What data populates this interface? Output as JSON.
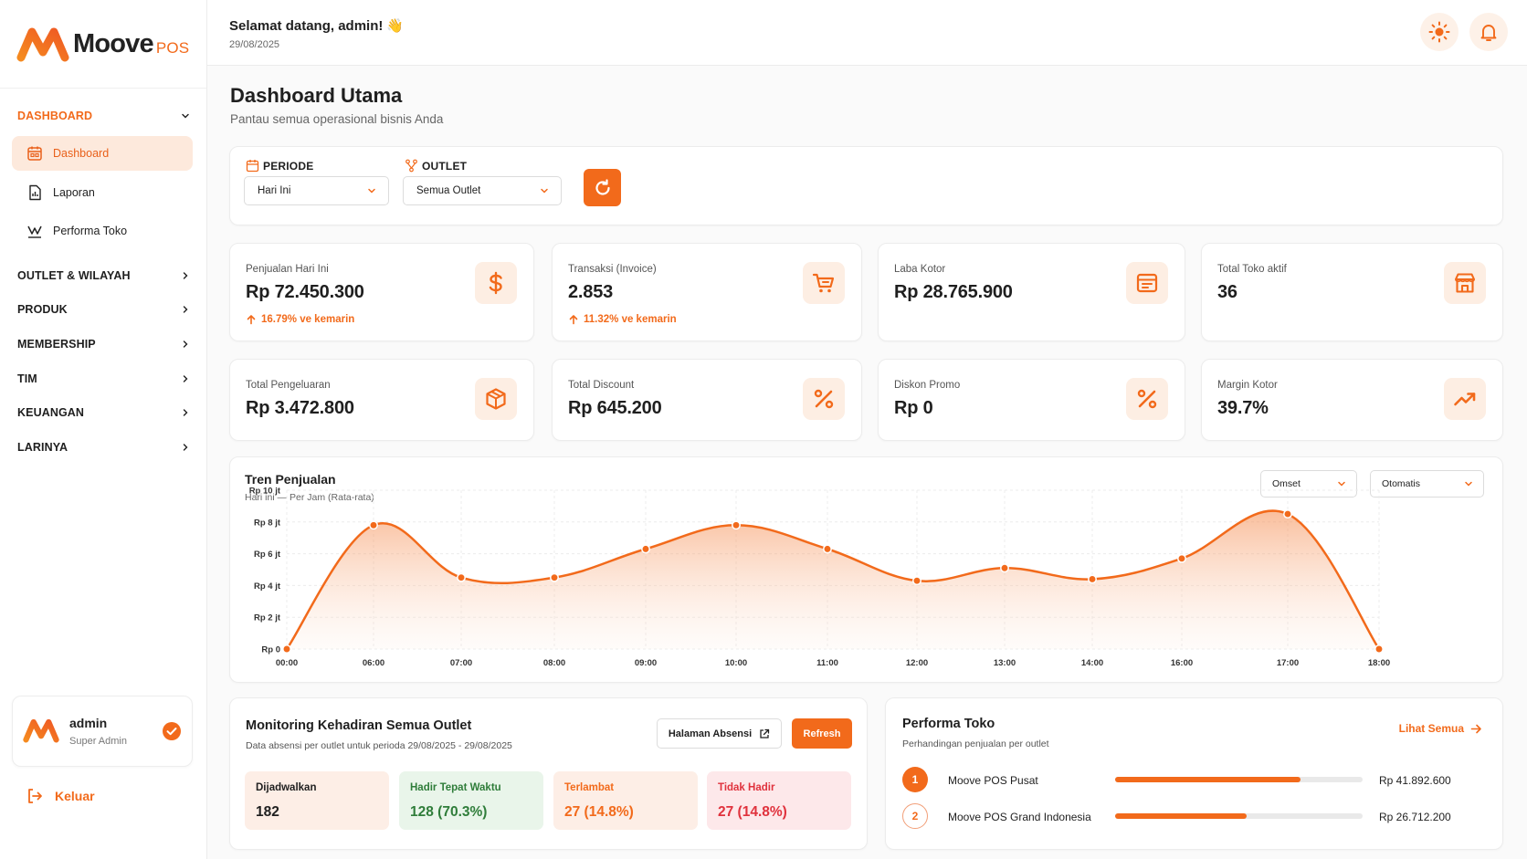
{
  "colors": {
    "accent": "#f26a1b",
    "accent_soft": "#fde9dc",
    "green": "#2f7d3a",
    "red": "#e0323d"
  },
  "brand": {
    "name": "Moove",
    "suffix": "POS"
  },
  "header": {
    "welcome": "Selamat datang, admin!",
    "wave": "👋",
    "date": "29/08/2025",
    "icons": [
      "sun-icon",
      "bell-icon"
    ]
  },
  "sidebar": {
    "section_dashboard": "DASHBOARD",
    "items": [
      {
        "label": "Dashboard",
        "icon": "calendar-icon",
        "active": true
      },
      {
        "label": "Laporan",
        "icon": "report-icon",
        "active": false
      },
      {
        "label": "Performa Toko",
        "icon": "performance-icon",
        "active": false
      }
    ],
    "sections": [
      "OUTLET & WILAYAH",
      "PRODUK",
      "MEMBERSHIP",
      "TIM",
      "KEUANGAN",
      "LARINYA"
    ],
    "user": {
      "name": "admin",
      "role": "Super Admin"
    },
    "logout": "Keluar"
  },
  "page": {
    "title": "Dashboard Utama",
    "subtitle": "Pantau semua operasional bisnis Anda"
  },
  "filters": {
    "periode_label": "PERIODE",
    "periode_value": "Hari Ini",
    "outlet_label": "OUTLET",
    "outlet_value": "Semua Outlet"
  },
  "stats": [
    {
      "label": "Penjualan Hari Ini",
      "value": "Rp 72.450.300",
      "trend": "16.79% ve kemarin",
      "icon": "dollar-icon"
    },
    {
      "label": "Transaksi (Invoice)",
      "value": "2.853",
      "trend": "11.32% ve kemarin",
      "icon": "cart-icon"
    },
    {
      "label": "Laba Kotor",
      "value": "Rp 28.765.900",
      "trend": "",
      "icon": "ledger-icon"
    },
    {
      "label": "Total Toko aktif",
      "value": "36",
      "trend": "",
      "icon": "store-icon"
    },
    {
      "label": "Total Pengeluaran",
      "value": "Rp 3.472.800",
      "trend": "",
      "icon": "box-icon"
    },
    {
      "label": "Total Discount",
      "value": "Rp 645.200",
      "trend": "",
      "icon": "percent-icon"
    },
    {
      "label": "Diskon Promo",
      "value": "Rp 0",
      "trend": "",
      "icon": "percent-icon"
    },
    {
      "label": "Margin Kotor",
      "value": "39.7%",
      "trend": "",
      "icon": "trend-up-icon"
    }
  ],
  "chart_panel": {
    "title": "Tren Penjualan",
    "subtitle": "Hari ini — Per Jam (Rata-rata)",
    "metric_select": "Omset",
    "mode_select": "Otomatis"
  },
  "chart_data": {
    "type": "area",
    "title": "Tren Penjualan",
    "x": [
      "00:00",
      "06:00",
      "07:00",
      "08:00",
      "09:00",
      "10:00",
      "11:00",
      "12:00",
      "13:00",
      "14:00",
      "16:00",
      "17:00",
      "18:00"
    ],
    "x_hours": [
      0,
      6,
      7,
      8,
      9,
      10,
      11,
      12,
      13,
      14,
      16,
      17,
      18
    ],
    "values": [
      0,
      7800000,
      4500000,
      4500000,
      6300000,
      7800000,
      6300000,
      4300000,
      5100000,
      4400000,
      5700000,
      8500000,
      0
    ],
    "y_ticks": [
      "Rp 0",
      "Rp 2 jt",
      "Rp 4 jt",
      "Rp 6 jt",
      "Rp 8 jt",
      "Rp 10 jt"
    ],
    "y_tick_values": [
      0,
      2000000,
      4000000,
      6000000,
      8000000,
      10000000
    ],
    "ylim": [
      0,
      10000000
    ],
    "xlabel": "",
    "ylabel": "",
    "grid": true,
    "legend": "none"
  },
  "monitoring": {
    "title": "Monitoring Kehadiran Semua Outlet",
    "subtitle": "Data absensi per outlet untuk perioda 29/08/2025 - 29/08/2025",
    "btn_absensi": "Halaman Absensi",
    "btn_refresh": "Refresh",
    "cards": [
      {
        "label": "Dijadwalkan",
        "value": "182"
      },
      {
        "label": "Hadir Tepat Waktu",
        "value": "128 (70.3%)"
      },
      {
        "label": "Terlambat",
        "value": "27 (14.8%)"
      },
      {
        "label": "Tidak Hadir",
        "value": "27 (14.8%)"
      }
    ]
  },
  "performa": {
    "title": "Performa Toko",
    "subtitle": "Perhandingan penjualan per outlet",
    "link": "Lihat Semua",
    "rows": [
      {
        "rank": "1",
        "name": "Moove POS Pusat",
        "value": "Rp 41.892.600",
        "share": 0.75
      },
      {
        "rank": "2",
        "name": "Moove POS Grand Indonesia",
        "value": "Rp 26.712.200",
        "share": 0.53
      }
    ]
  }
}
